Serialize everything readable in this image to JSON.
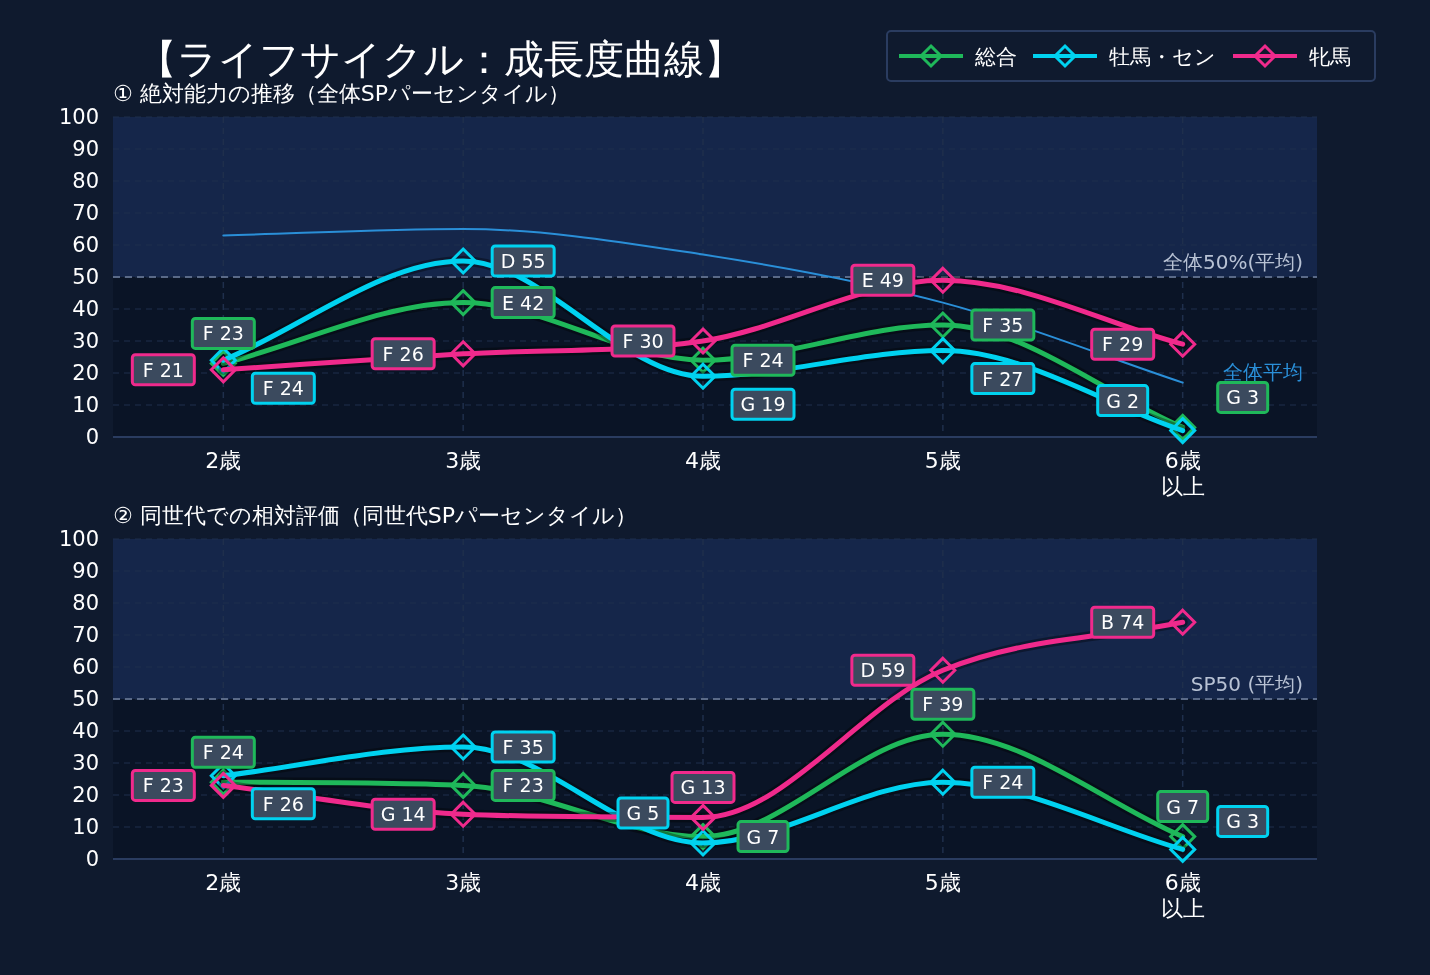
{
  "chart_data": [
    {
      "type": "line",
      "title": "【ライフサイクル：成長度曲線】",
      "subtitle": "① 絶対能力の推移（全体SPパーセンタイル）",
      "categories": [
        "2歳",
        "3歳",
        "4歳",
        "5歳",
        "6歳以上"
      ],
      "series": [
        {
          "name": "総合",
          "color": "#1fb85a",
          "values": [
            23,
            42,
            24,
            35,
            3
          ],
          "value_labels": [
            "F 23",
            "E 42",
            "F 24",
            "F 35",
            "G 3"
          ]
        },
        {
          "name": "牡馬・セン",
          "color": "#00d2f0",
          "values": [
            24,
            55,
            19,
            27,
            2
          ],
          "value_labels": [
            "F 24",
            "D 55",
            "G 19",
            "F 27",
            "G 2"
          ]
        },
        {
          "name": "牝馬",
          "color": "#f02a8c",
          "values": [
            21,
            26,
            30,
            49,
            29
          ],
          "value_labels": [
            "F 21",
            "F 26",
            "F 30",
            "E 49",
            "F 29"
          ]
        },
        {
          "name": "全体平均",
          "type": "line",
          "marker": "none",
          "color": "#2a8fd8",
          "values": [
            63,
            65,
            57,
            42,
            17
          ]
        }
      ],
      "ylim": [
        0,
        100
      ],
      "yticks": [
        0,
        10,
        20,
        30,
        40,
        50,
        60,
        70,
        80,
        90,
        100
      ],
      "grid": true,
      "legend": "top right",
      "marker": "diamond",
      "line_style": "solid",
      "ref_lines": [
        {
          "axis": "y",
          "value": 50,
          "label": "全体50%(平均)",
          "line_style": "dashed",
          "color": "#5a6a88"
        }
      ],
      "bands": [
        {
          "axis": "y",
          "from": 50,
          "to": 100,
          "color": "#15264a"
        }
      ]
    },
    {
      "type": "line",
      "title": "② 同世代での相対評価（同世代SPパーセンタイル）",
      "categories": [
        "2歳",
        "3歳",
        "4歳",
        "5歳",
        "6歳以上"
      ],
      "series": [
        {
          "color": "#1fb85a",
          "values": [
            24,
            23,
            7,
            39,
            7
          ],
          "value_labels": [
            "F 24",
            "F 23",
            "G 7",
            "F 39",
            "G 7"
          ]
        },
        {
          "color": "#00d2f0",
          "values": [
            26,
            35,
            5,
            24,
            3
          ],
          "value_labels": [
            "F 26",
            "F 35",
            "G 5",
            "F 24",
            "G 3"
          ]
        },
        {
          "color": "#f02a8c",
          "values": [
            23,
            14,
            13,
            59,
            74
          ],
          "value_labels": [
            "F 23",
            "G 14",
            "G 13",
            "D 59",
            "B 74"
          ]
        }
      ],
      "ylim": [
        0,
        100
      ],
      "yticks": [
        0,
        10,
        20,
        30,
        40,
        50,
        60,
        70,
        80,
        90,
        100
      ],
      "grid": true,
      "marker": "diamond",
      "line_style": "solid",
      "ref_lines": [
        {
          "axis": "y",
          "value": 50,
          "label": "SP50 (平均)",
          "line_style": "dashed",
          "color": "#5a6a88"
        }
      ],
      "bands": [
        {
          "axis": "y",
          "from": 50,
          "to": 100,
          "color": "#15264a"
        }
      ]
    }
  ]
}
